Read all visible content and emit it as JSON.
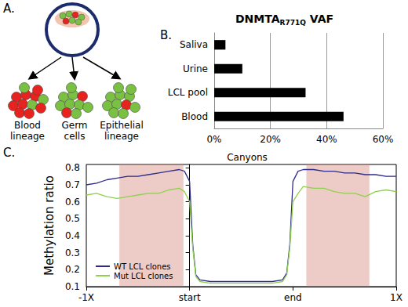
{
  "panel_labels": [
    "A.",
    "B.",
    "C."
  ],
  "diagram": {
    "labels": [
      "Blood lineage",
      "Germ cells",
      "Epithelial lineage"
    ]
  },
  "chart_data": [
    {
      "type": "bar",
      "orientation": "horizontal",
      "title": "DNMTA R771Q VAF",
      "categories": [
        "Saliva",
        "Urine",
        "LCL pool",
        "Blood"
      ],
      "values": [
        4,
        10,
        32.5,
        46
      ],
      "color": "#000000",
      "xlim": [
        0,
        60
      ],
      "xticks": [
        {
          "value": 0,
          "label": "0%"
        },
        {
          "value": 20,
          "label": "20%"
        },
        {
          "value": 40,
          "label": "40%"
        },
        {
          "value": 60,
          "label": "60%"
        }
      ],
      "grid": true
    },
    {
      "type": "line",
      "title": "Canyons",
      "y_label": "Methylation ratio",
      "x": [
        -1,
        -0.9,
        -0.8,
        -0.7,
        -0.6,
        -0.5,
        -0.4,
        -0.3,
        -0.2,
        -0.1,
        -0.05,
        0,
        0.03,
        0.06,
        0.1,
        0.2,
        0.3,
        0.4,
        0.5,
        0.6,
        0.7,
        0.8,
        0.9,
        0.94,
        0.97,
        1,
        1.05,
        1.1,
        1.2,
        1.3,
        1.4,
        1.5,
        1.6,
        1.7,
        1.8,
        1.9,
        2
      ],
      "series": [
        {
          "name": "WT LCL clones",
          "color": "#2e2a8a",
          "values": [
            0.7,
            0.71,
            0.73,
            0.74,
            0.75,
            0.75,
            0.76,
            0.77,
            0.78,
            0.79,
            0.78,
            0.72,
            0.35,
            0.17,
            0.14,
            0.13,
            0.13,
            0.13,
            0.13,
            0.13,
            0.13,
            0.13,
            0.14,
            0.18,
            0.35,
            0.72,
            0.78,
            0.79,
            0.79,
            0.78,
            0.78,
            0.77,
            0.77,
            0.76,
            0.76,
            0.75,
            0.75
          ]
        },
        {
          "name": "Mut LCL clones",
          "color": "#8fd14f",
          "values": [
            0.64,
            0.65,
            0.63,
            0.62,
            0.63,
            0.64,
            0.65,
            0.65,
            0.67,
            0.68,
            0.66,
            0.6,
            0.33,
            0.16,
            0.13,
            0.12,
            0.12,
            0.12,
            0.12,
            0.12,
            0.12,
            0.12,
            0.13,
            0.17,
            0.33,
            0.6,
            0.65,
            0.69,
            0.68,
            0.68,
            0.66,
            0.65,
            0.65,
            0.63,
            0.66,
            0.67,
            0.66
          ]
        }
      ],
      "shaded_regions": [
        [
          -0.68,
          -0.06
        ],
        [
          1.13,
          1.74
        ]
      ],
      "xlim": [
        -1,
        2
      ],
      "xticks": [
        {
          "value": -1,
          "label": "-1X"
        },
        {
          "value": 0,
          "label": "start"
        },
        {
          "value": 1,
          "label": "end"
        },
        {
          "value": 2,
          "label": "1X"
        }
      ],
      "ylim": [
        0.1,
        0.82
      ],
      "yticks": [
        0.1,
        0.2,
        0.3,
        0.4,
        0.5,
        0.6,
        0.7,
        0.8
      ],
      "legend": "lower left",
      "grid": false
    }
  ]
}
